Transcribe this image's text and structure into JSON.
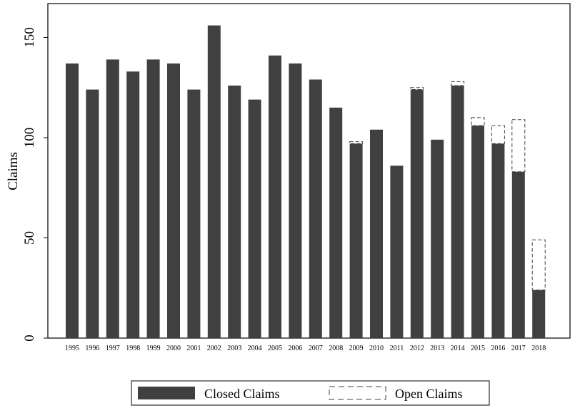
{
  "chart_data": {
    "type": "bar",
    "ylabel": "Claims",
    "ylim": [
      0,
      170
    ],
    "yticks": [
      0,
      50,
      100,
      150
    ],
    "categories": [
      "1995",
      "1996",
      "1997",
      "1998",
      "1999",
      "2000",
      "2001",
      "2002",
      "2003",
      "2004",
      "2005",
      "2006",
      "2007",
      "2008",
      "2009",
      "2010",
      "2011",
      "2012",
      "2013",
      "2014",
      "2015",
      "2016",
      "2017",
      "2018"
    ],
    "series": [
      {
        "name": "Closed Claims",
        "style": "solid",
        "color": "#404040",
        "values": [
          137,
          124,
          139,
          133,
          139,
          137,
          124,
          156,
          126,
          119,
          141,
          137,
          129,
          115,
          97,
          104,
          86,
          124,
          99,
          126,
          106,
          97,
          83,
          24
        ]
      },
      {
        "name": "Open Claims",
        "style": "dashed",
        "color": "#404040",
        "values": [
          0,
          0,
          0,
          0,
          0,
          0,
          0,
          0,
          0,
          0,
          0,
          0,
          0,
          0,
          1,
          0,
          0,
          1,
          0,
          2,
          4,
          9,
          26,
          25
        ]
      }
    ],
    "stacked": true,
    "grid": false,
    "legend": "bottom"
  }
}
